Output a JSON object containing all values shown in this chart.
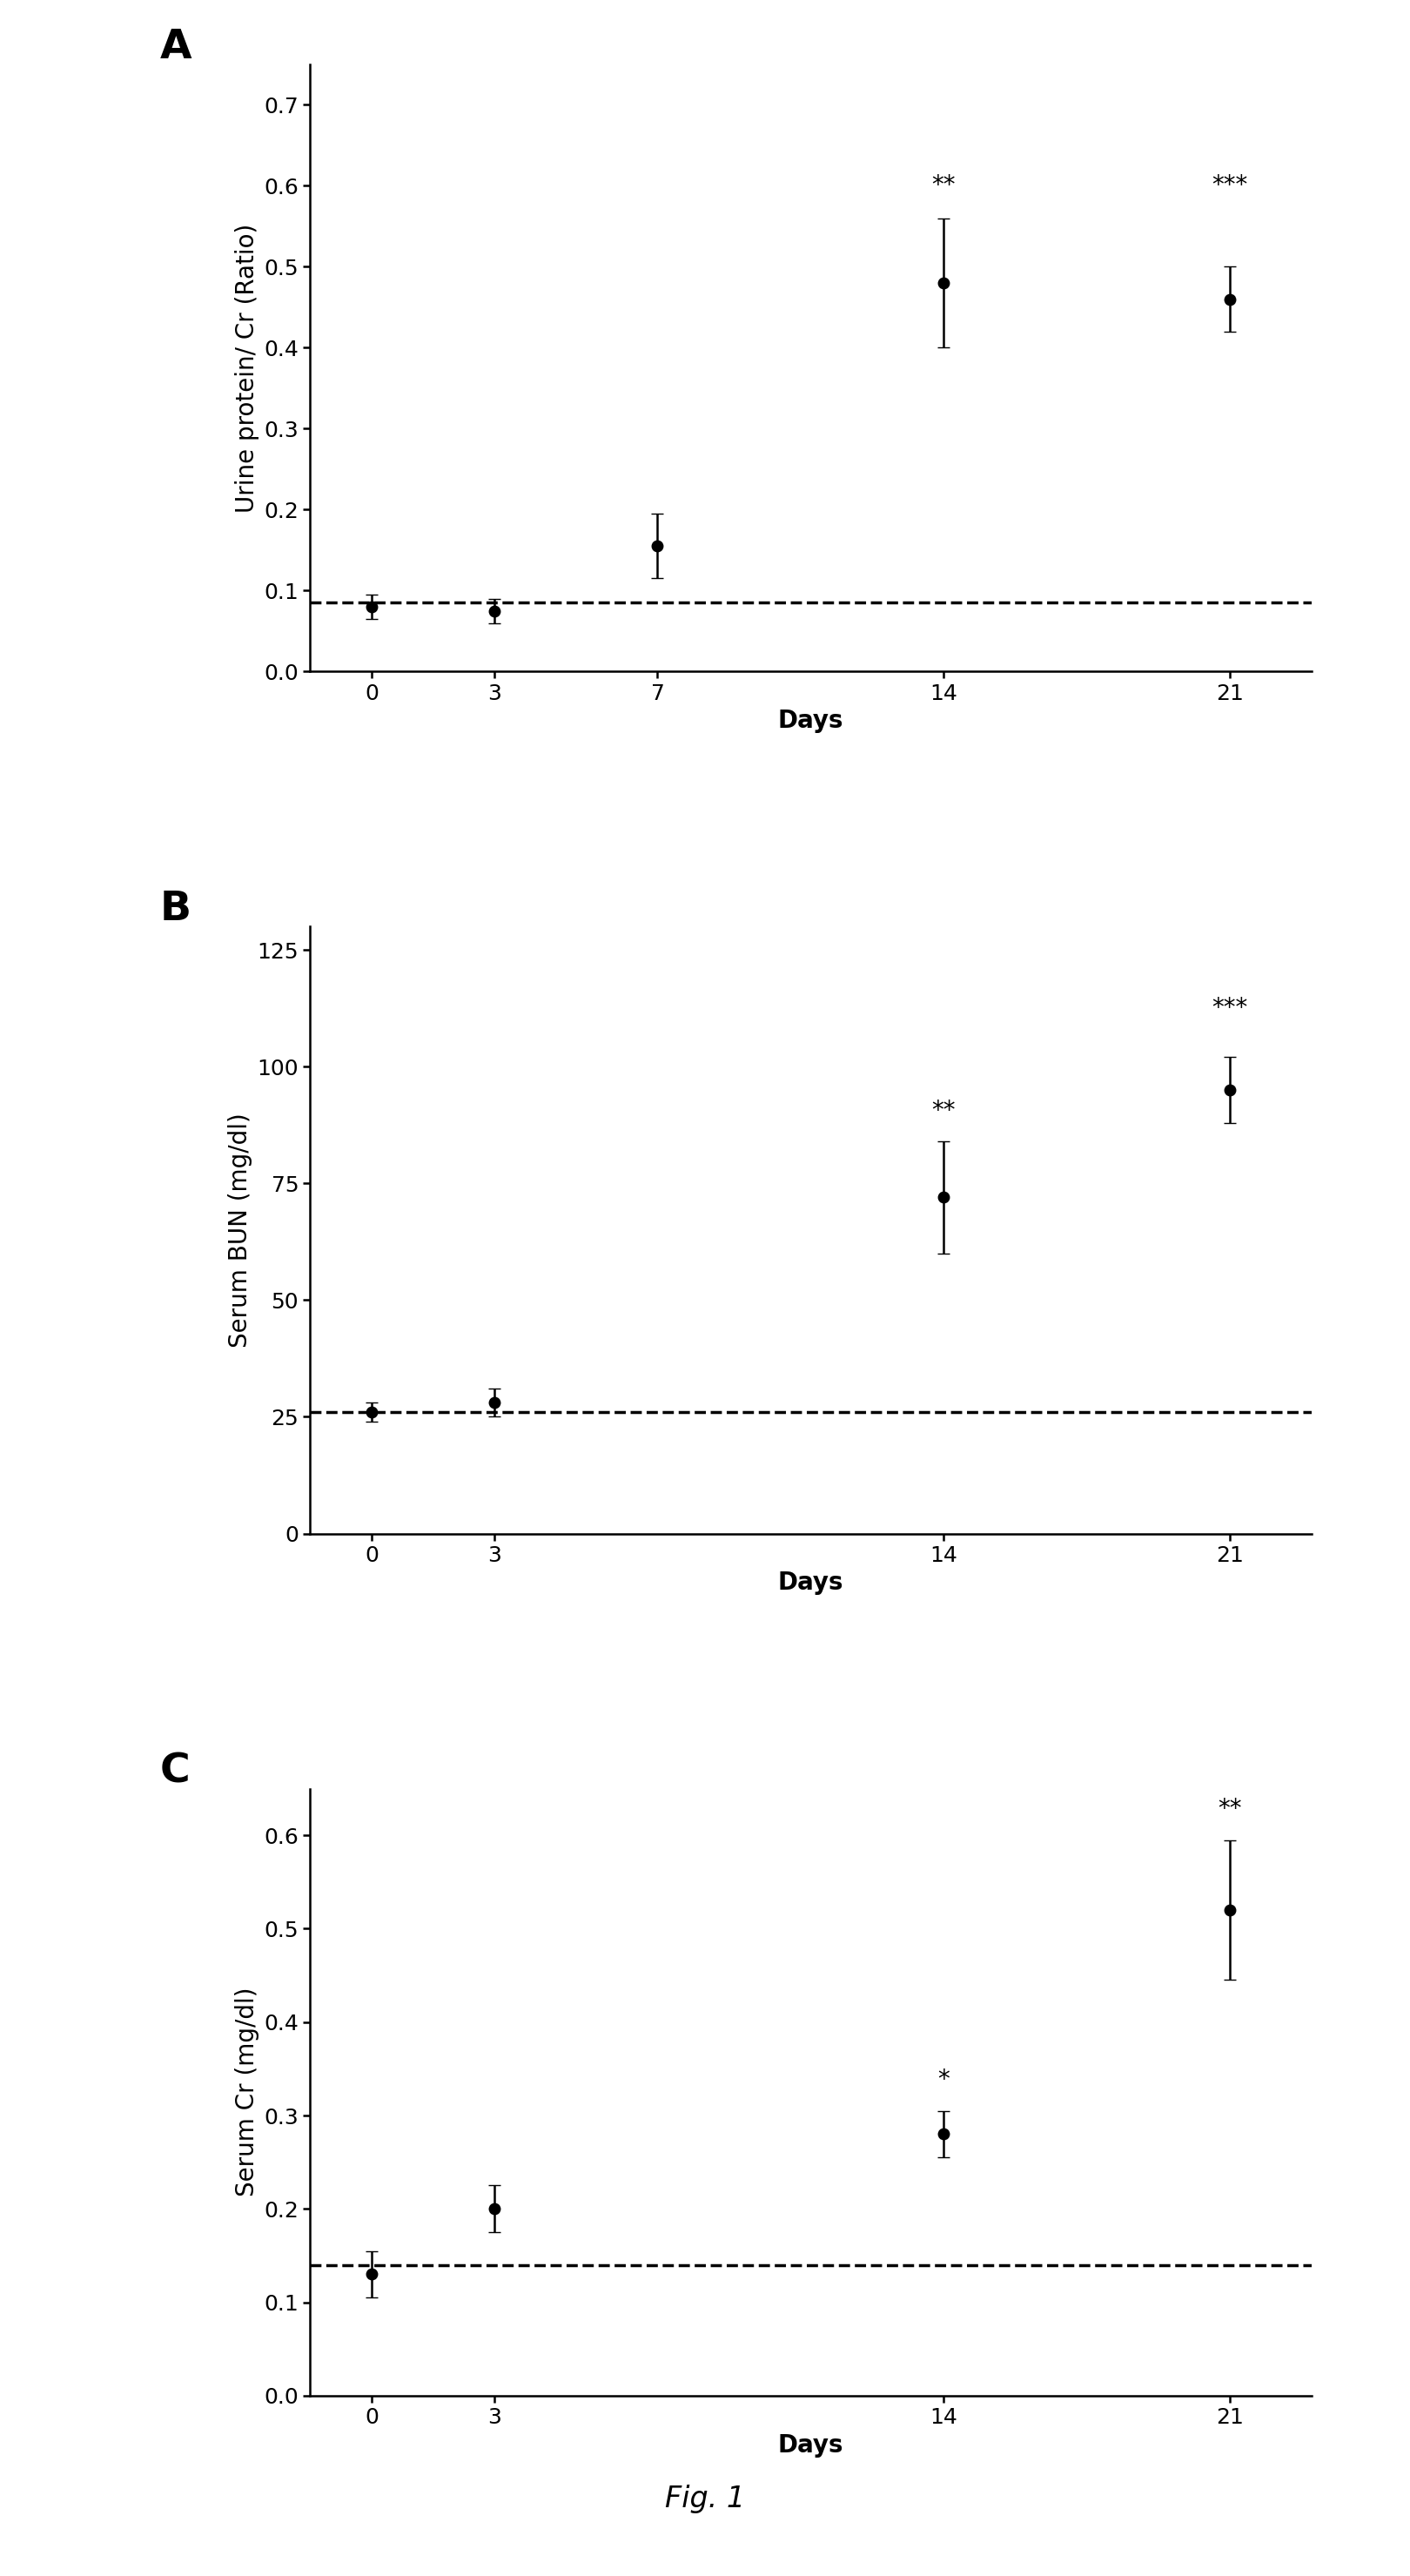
{
  "panel_A": {
    "label": "A",
    "x": [
      0,
      3,
      7,
      14,
      21
    ],
    "y": [
      0.08,
      0.075,
      0.155,
      0.48,
      0.46
    ],
    "yerr": [
      0.015,
      0.015,
      0.04,
      0.08,
      0.04
    ],
    "dashed_y": 0.085,
    "ylabel": "Urine protein/ Cr (Ratio)",
    "xlabel": "Days",
    "ylim": [
      0,
      0.75
    ],
    "yticks": [
      0.0,
      0.1,
      0.2,
      0.3,
      0.4,
      0.5,
      0.6,
      0.7
    ],
    "xticks": [
      0,
      3,
      7,
      14,
      21
    ],
    "xlim": [
      -1.5,
      23
    ],
    "significance": {
      "14": "**",
      "21": "***"
    },
    "sig_y": {
      "14": 0.585,
      "21": 0.585
    }
  },
  "panel_B": {
    "label": "B",
    "x": [
      0,
      3,
      14,
      21
    ],
    "y": [
      26,
      28,
      72,
      95
    ],
    "yerr": [
      2,
      3,
      12,
      7
    ],
    "dashed_y": 26,
    "ylabel": "Serum BUN (mg/dl)",
    "xlabel": "Days",
    "ylim": [
      0,
      130
    ],
    "yticks": [
      0,
      25,
      50,
      75,
      100,
      125
    ],
    "xticks": [
      0,
      3,
      14,
      21
    ],
    "xlim": [
      -1.5,
      23
    ],
    "significance": {
      "14": "**",
      "21": "***"
    },
    "sig_y": {
      "14": 88,
      "21": 110
    }
  },
  "panel_C": {
    "label": "C",
    "x": [
      0,
      3,
      14,
      21
    ],
    "y": [
      0.13,
      0.2,
      0.28,
      0.52
    ],
    "yerr": [
      0.025,
      0.025,
      0.025,
      0.075
    ],
    "dashed_y": 0.14,
    "ylabel": "Serum Cr (mg/dl)",
    "xlabel": "Days",
    "ylim": [
      0.0,
      0.65
    ],
    "yticks": [
      0.0,
      0.1,
      0.2,
      0.3,
      0.4,
      0.5,
      0.6
    ],
    "xticks": [
      0,
      3,
      14,
      21
    ],
    "xlim": [
      -1.5,
      23
    ],
    "significance": {
      "14": "*",
      "21": "**"
    },
    "sig_y": {
      "14": 0.325,
      "21": 0.615
    }
  },
  "fig_label": "Fig. 1",
  "line_color": "#000000",
  "marker": "o",
  "markersize": 9,
  "linewidth": 2.2,
  "capsize": 5,
  "elinewidth": 1.8,
  "dash_linewidth": 2.5,
  "tick_fontsize": 18,
  "axis_label_fontsize": 20,
  "sig_fontsize": 20,
  "panel_letter_fontsize": 34,
  "fig_label_fontsize": 24,
  "background_color": "#ffffff"
}
